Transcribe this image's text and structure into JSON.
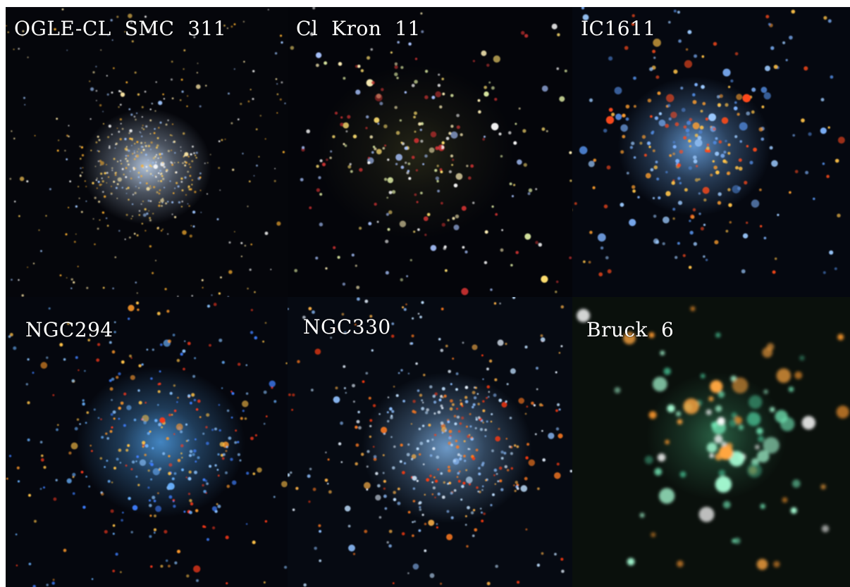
{
  "panels": [
    {
      "id": "p1",
      "label": "OGLE-CL  SMC  311",
      "bg": "#05060b",
      "glow": "#cfe4ff",
      "stars": [
        "#ffb22e",
        "#ffcc55",
        "#ffe9a8",
        "#ffffff",
        "#9fc6ff"
      ]
    },
    {
      "id": "p2",
      "label": "Cl  Kron  11",
      "bg": "#04050a",
      "glow": "#2a2a18",
      "stars": [
        "#fff1b8",
        "#ffe070",
        "#d8e6a0",
        "#ffffff",
        "#a9c4ff",
        "#c23030"
      ]
    },
    {
      "id": "p3",
      "label": "IC1611",
      "bg": "#050810",
      "glow": "#6ea8e8",
      "stars": [
        "#7fb4ff",
        "#9ccaff",
        "#ff9f2e",
        "#ffc247",
        "#4f86d8",
        "#ff4a1a"
      ]
    },
    {
      "id": "p4",
      "label": "NGC294",
      "bg": "#05070e",
      "glow": "#4e9be0",
      "stars": [
        "#ff9a2a",
        "#ffc247",
        "#6ab2ff",
        "#3f7fff",
        "#ff3a1a",
        "#8cc4ff"
      ]
    },
    {
      "id": "p5",
      "label": "NGC330",
      "bg": "#060a12",
      "glow": "#7fb2e6",
      "stars": [
        "#bfe0ff",
        "#e6f2ff",
        "#ff7a1e",
        "#ffb347",
        "#8fc0ff",
        "#ff3a10"
      ]
    },
    {
      "id": "p6",
      "label": "Bruck  6",
      "bg": "#0a100c",
      "glow": "#2f6e4e",
      "stars": [
        "#6fe0b0",
        "#a8ffd6",
        "#ffffff",
        "#ff9a2e",
        "#ffa640",
        "#3ca07a"
      ]
    }
  ]
}
